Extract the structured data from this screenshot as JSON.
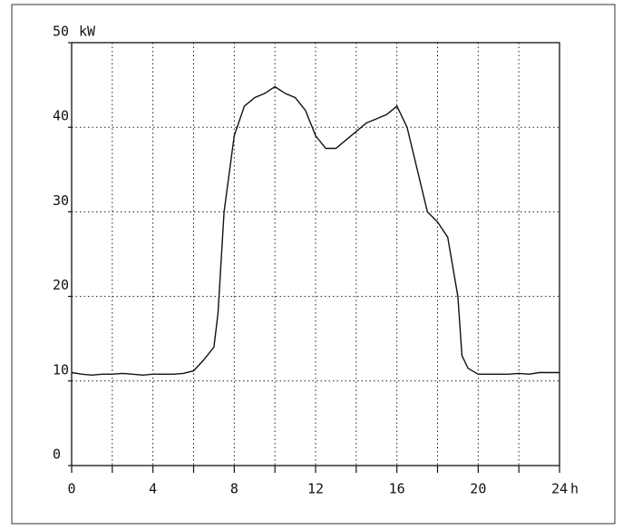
{
  "chart_data": {
    "type": "line",
    "x_label": "h",
    "y_label": "kW",
    "x": [
      0,
      0.5,
      1,
      1.5,
      2,
      2.5,
      3,
      3.5,
      4,
      4.5,
      5,
      5.5,
      6,
      6.5,
      7,
      7.2,
      7.5,
      8,
      8.5,
      9,
      9.5,
      10,
      10.5,
      11,
      11.5,
      12,
      12.5,
      13,
      13.5,
      14,
      14.5,
      15,
      15.5,
      16,
      16.5,
      17,
      17.5,
      18,
      18.5,
      19,
      19.2,
      19.5,
      20,
      20.5,
      21,
      21.5,
      22,
      22.5,
      23,
      23.5,
      24
    ],
    "series": [
      {
        "color": "#111111",
        "values": [
          11,
          10.8,
          10.7,
          10.8,
          10.8,
          10.9,
          10.8,
          10.7,
          10.8,
          10.8,
          10.8,
          10.9,
          11.2,
          12.5,
          14,
          18,
          30,
          39,
          42.5,
          43.5,
          44,
          44.8,
          44,
          43.5,
          42,
          39,
          37.5,
          37.5,
          38.5,
          39.5,
          40.5,
          41,
          41.5,
          42.5,
          40,
          35,
          30,
          28.8,
          27,
          20,
          13,
          11.5,
          10.8,
          10.8,
          10.8,
          10.8,
          10.9,
          10.8,
          11,
          11,
          11
        ]
      }
    ],
    "xlim": [
      0,
      24
    ],
    "xticks": [
      0,
      4,
      8,
      12,
      16,
      20,
      24
    ],
    "xminor_ticks": [
      2,
      6,
      10,
      14,
      18,
      22
    ],
    "ylim": [
      0,
      50
    ],
    "yticks": [
      0,
      10,
      20,
      30,
      40,
      50
    ],
    "grid": true
  }
}
